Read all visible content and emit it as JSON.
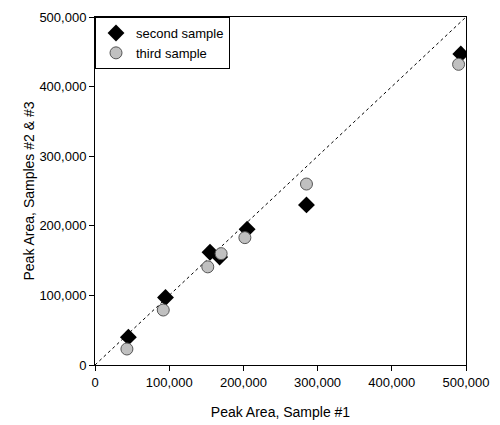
{
  "chart_data": {
    "type": "scatter",
    "x_label": "Peak Area, Sample #1",
    "y_label": "Peak Area, Samples #2 & #3",
    "series": [
      {
        "name": "second sample",
        "color": "#000000",
        "marker": "diamond",
        "x": [
          45000,
          95000,
          155000,
          168000,
          205000,
          285000,
          493000
        ],
        "values": [
          40000,
          97000,
          162000,
          155000,
          195000,
          230000,
          447000
        ]
      },
      {
        "name": "third sample",
        "color": "#c0c0c0",
        "marker": "circle",
        "x": [
          43000,
          92000,
          152000,
          170000,
          202000,
          285000,
          490000
        ],
        "values": [
          23000,
          79000,
          141000,
          160000,
          183000,
          260000,
          432000
        ]
      }
    ],
    "reference_line": {
      "x": [
        0,
        500000
      ],
      "y": [
        0,
        500000
      ],
      "color": "#000000",
      "line_style": "dot"
    },
    "xlim": [
      0,
      500000
    ],
    "ylim": [
      0,
      500000
    ],
    "xticks": [
      0,
      {
        "value": 100000,
        "label": "100,000"
      },
      {
        "value": 200000,
        "label": "200,000"
      },
      {
        "value": 300000,
        "label": "300,000"
      },
      {
        "value": 400000,
        "label": "400,000"
      },
      {
        "value": 500000,
        "label": "500,000"
      }
    ],
    "yticks": [
      0,
      {
        "value": 100000,
        "label": "100,000"
      },
      {
        "value": 200000,
        "label": "200,000"
      },
      {
        "value": 300000,
        "label": "300,000"
      },
      {
        "value": 400000,
        "label": "400,000"
      },
      {
        "value": 500000,
        "label": "500,000"
      }
    ],
    "grid": false,
    "legend": "upper left"
  }
}
